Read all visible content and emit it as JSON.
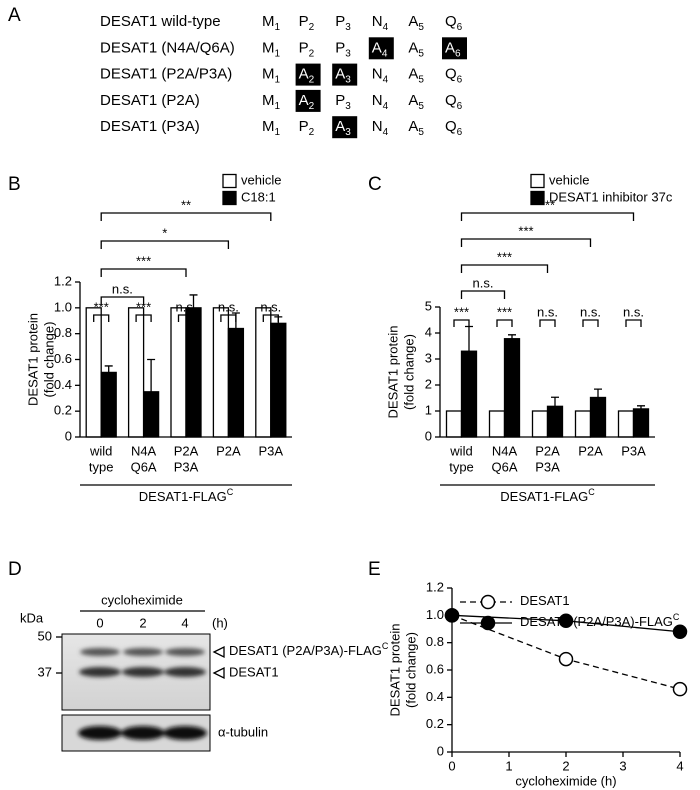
{
  "panel_a": {
    "label": "A",
    "rows": [
      {
        "name": "DESAT1 wild-type",
        "residues": [
          {
            "letter": "M",
            "index": 1,
            "mutated": false
          },
          {
            "letter": "P",
            "index": 2,
            "mutated": false
          },
          {
            "letter": "P",
            "index": 3,
            "mutated": false
          },
          {
            "letter": "N",
            "index": 4,
            "mutated": false
          },
          {
            "letter": "A",
            "index": 5,
            "mutated": false
          },
          {
            "letter": "Q",
            "index": 6,
            "mutated": false
          }
        ]
      },
      {
        "name": "DESAT1 (N4A/Q6A)",
        "residues": [
          {
            "letter": "M",
            "index": 1,
            "mutated": false
          },
          {
            "letter": "P",
            "index": 2,
            "mutated": false
          },
          {
            "letter": "P",
            "index": 3,
            "mutated": false
          },
          {
            "letter": "A",
            "index": 4,
            "mutated": true
          },
          {
            "letter": "A",
            "index": 5,
            "mutated": false
          },
          {
            "letter": "A",
            "index": 6,
            "mutated": true
          }
        ]
      },
      {
        "name": "DESAT1 (P2A/P3A)",
        "residues": [
          {
            "letter": "M",
            "index": 1,
            "mutated": false
          },
          {
            "letter": "A",
            "index": 2,
            "mutated": true
          },
          {
            "letter": "A",
            "index": 3,
            "mutated": true
          },
          {
            "letter": "N",
            "index": 4,
            "mutated": false
          },
          {
            "letter": "A",
            "index": 5,
            "mutated": false
          },
          {
            "letter": "Q",
            "index": 6,
            "mutated": false
          }
        ]
      },
      {
        "name": "DESAT1 (P2A)",
        "residues": [
          {
            "letter": "M",
            "index": 1,
            "mutated": false
          },
          {
            "letter": "A",
            "index": 2,
            "mutated": true
          },
          {
            "letter": "P",
            "index": 3,
            "mutated": false
          },
          {
            "letter": "N",
            "index": 4,
            "mutated": false
          },
          {
            "letter": "A",
            "index": 5,
            "mutated": false
          },
          {
            "letter": "Q",
            "index": 6,
            "mutated": false
          }
        ]
      },
      {
        "name": "DESAT1 (P3A)",
        "residues": [
          {
            "letter": "M",
            "index": 1,
            "mutated": false
          },
          {
            "letter": "P",
            "index": 2,
            "mutated": false
          },
          {
            "letter": "A",
            "index": 3,
            "mutated": true
          },
          {
            "letter": "N",
            "index": 4,
            "mutated": false
          },
          {
            "letter": "A",
            "index": 5,
            "mutated": false
          },
          {
            "letter": "Q",
            "index": 6,
            "mutated": false
          }
        ]
      }
    ]
  },
  "panel_d": {
    "label": "D",
    "kda_label": "kDa",
    "markers": [
      50,
      37
    ],
    "treatment": "cycloheximide",
    "times": [
      0,
      2,
      4
    ],
    "time_unit": "(h)",
    "bands": [
      {
        "label": "DESAT1 (P2A/P3A)-FLAG",
        "superscript": "C"
      },
      {
        "label": "DESAT1"
      }
    ],
    "loading_control": "α-tubulin"
  },
  "chart_data": [
    {
      "type": "bar",
      "panel_label": "B",
      "ylabel": [
        "DESAT1 protein",
        "(fold change)"
      ],
      "categories": [
        [
          "wild",
          "type"
        ],
        [
          "N4A",
          "Q6A"
        ],
        [
          "P2A",
          "P3A"
        ],
        [
          "P2A"
        ],
        [
          "P3A"
        ]
      ],
      "series": [
        {
          "name": "vehicle",
          "color": "#ffffff",
          "values": [
            1,
            1,
            1,
            1,
            1
          ]
        },
        {
          "name": "C18:1",
          "color": "#000000",
          "values": [
            0.5,
            0.35,
            1.0,
            0.84,
            0.88
          ],
          "errors": [
            0.05,
            0.25,
            0.1,
            0.12,
            0.05
          ]
        }
      ],
      "ylim": [
        0,
        1.2
      ],
      "yticks": [
        0,
        0.2,
        0.4,
        0.6,
        0.8,
        {
          "value": 1,
          "label": "1.0"
        },
        1.2
      ],
      "pair_labels": [
        "***",
        "***",
        "n.s.",
        "n.s.",
        "n.s."
      ],
      "wt_comparisons": [
        null,
        "n.s.",
        "***",
        "*",
        "**"
      ],
      "group_label": "DESAT1-FLAG",
      "group_label_superscript": "C"
    },
    {
      "type": "bar",
      "panel_label": "C",
      "ylabel": [
        "DESAT1 protein",
        "(fold change)"
      ],
      "categories": [
        [
          "wild",
          "type"
        ],
        [
          "N4A",
          "Q6A"
        ],
        [
          "P2A",
          "P3A"
        ],
        [
          "P2A"
        ],
        [
          "P3A"
        ]
      ],
      "series": [
        {
          "name": "vehicle",
          "color": "#ffffff",
          "values": [
            1,
            1,
            1,
            1,
            1
          ]
        },
        {
          "name": "DESAT1 inhibitor 37c",
          "color": "#000000",
          "values": [
            3.3,
            3.78,
            1.18,
            1.52,
            1.08
          ],
          "errors": [
            0.95,
            0.15,
            0.35,
            0.32,
            0.12
          ]
        }
      ],
      "ylim": [
        0,
        5
      ],
      "yticks": [
        0,
        1,
        2,
        3,
        4,
        5
      ],
      "pair_labels": [
        "***",
        "***",
        "n.s.",
        "n.s.",
        "n.s."
      ],
      "wt_comparisons": [
        null,
        "n.s.",
        "***",
        "***",
        "***"
      ],
      "group_label": "DESAT1-FLAG",
      "group_label_superscript": "C"
    },
    {
      "type": "line",
      "panel_label": "E",
      "ylabel": [
        "DESAT1 protein",
        "(fold change)"
      ],
      "xlabel": "cycloheximide (h)",
      "x": [
        0,
        2,
        4
      ],
      "xlim": [
        0,
        4
      ],
      "xticks": [
        0,
        1,
        2,
        3,
        4
      ],
      "ylim": [
        0,
        1.2
      ],
      "yticks": [
        0,
        0.2,
        0.4,
        0.6,
        0.8,
        {
          "value": 1,
          "label": "1.0"
        },
        1.2
      ],
      "series": [
        {
          "name": "DESAT1",
          "color": "#000000",
          "dashed": true,
          "marker_fill": "#ffffff",
          "values": [
            1,
            0.68,
            0.46
          ]
        },
        {
          "name": "DESAT1 (P2A/P3A)-FLAG",
          "name_superscript": "C",
          "color": "#000000",
          "dashed": false,
          "marker_fill": "#000000",
          "values": [
            1,
            0.96,
            0.88
          ]
        }
      ]
    }
  ]
}
